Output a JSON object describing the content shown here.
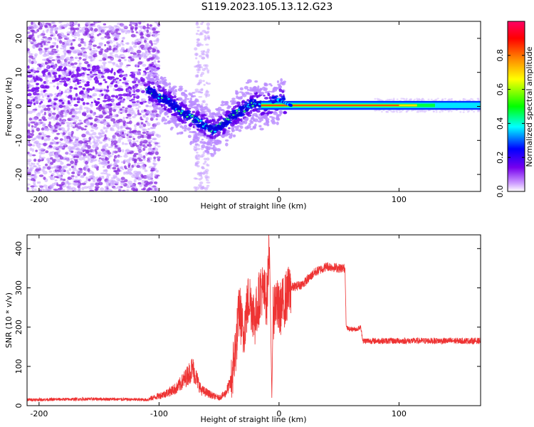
{
  "title": "S119.2023.105.13.12.G23",
  "chart_data": [
    {
      "type": "heatmap",
      "title": "S119.2023.105.13.12.G23",
      "xlabel": "Height of straight line (km)",
      "ylabel": "Frequency (Hz)",
      "xlim": [
        -210,
        168
      ],
      "ylim": [
        -25,
        25
      ],
      "x_ticks": [
        -200,
        -100,
        0,
        100
      ],
      "y_ticks": [
        -20,
        -10,
        0,
        10,
        20
      ],
      "colorbar": {
        "label": "Normalized spectral amplitude",
        "range": [
          0,
          1
        ],
        "ticks": [
          0.0,
          0.2,
          0.4,
          0.6,
          0.8
        ],
        "colormap": [
          "#ffffff",
          "#cc99ff",
          "#7700ee",
          "#0000ff",
          "#00ffff",
          "#00ff00",
          "#ffff00",
          "#ff8800",
          "#ff0000",
          "#ff0066"
        ]
      },
      "ridge": {
        "x": [
          -110,
          -100,
          -90,
          -80,
          -70,
          -60,
          -55,
          -50,
          -45,
          -40,
          -30,
          -20,
          -15,
          -10,
          0,
          5,
          10,
          50,
          100,
          168
        ],
        "frequency": [
          5,
          3,
          1,
          -2,
          -4,
          -6,
          -7,
          -6,
          -5,
          -3,
          -1,
          1,
          0.5,
          0.5,
          2,
          1,
          0.3,
          0.3,
          0.3,
          0.4
        ]
      }
    },
    {
      "type": "line",
      "xlabel": "Height of straight line (km)",
      "ylabel": "SNR (10 * v/v)",
      "xlim": [
        -210,
        168
      ],
      "ylim": [
        0,
        435
      ],
      "x_ticks": [
        -200,
        -100,
        0,
        100
      ],
      "y_ticks": [
        0,
        100,
        200,
        300,
        400
      ],
      "color": "#ee3333",
      "series": [
        {
          "x": [
            -210,
            -150,
            -110,
            -95,
            -85,
            -78,
            -72,
            -65,
            -55,
            -50,
            -45,
            -40,
            -36,
            -33,
            -30,
            -25,
            -20,
            -15,
            -10,
            -8,
            -6,
            -5,
            -3,
            0,
            10,
            20,
            30,
            40,
            50,
            55,
            56,
            58,
            65,
            68,
            70,
            80,
            100,
            120,
            150,
            168
          ],
          "y": [
            15,
            17,
            15,
            30,
            45,
            70,
            95,
            40,
            25,
            20,
            30,
            60,
            150,
            250,
            180,
            280,
            220,
            300,
            270,
            420,
            20,
            230,
            270,
            240,
            300,
            310,
            340,
            355,
            350,
            350,
            200,
            195,
            195,
            200,
            165,
            165,
            165,
            165,
            165,
            165
          ]
        }
      ]
    }
  ]
}
